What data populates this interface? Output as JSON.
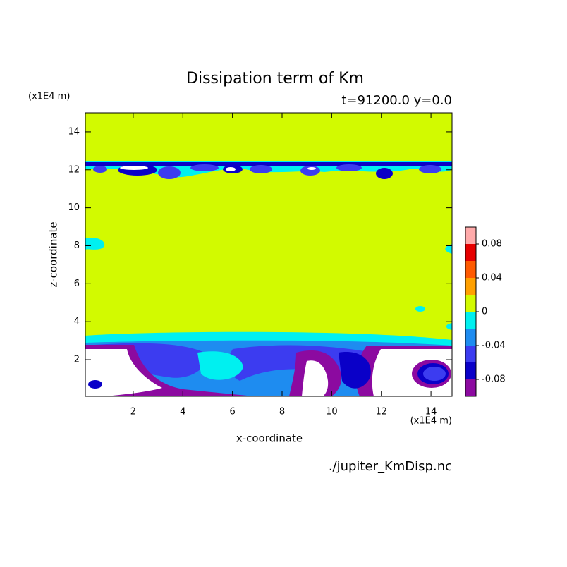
{
  "chart_data": {
    "type": "contour",
    "title": "Dissipation term of Km",
    "subtitle": "t=91200.0 y=0.0",
    "x_label": "x-coordinate",
    "y_label": "z-coordinate",
    "x_unit": "(x1E4 m)",
    "y_unit": "(x1E4 m)",
    "source": "./jupiter_KmDisp.nc",
    "xlim": [
      0.07,
      14.85
    ],
    "ylim": [
      0.07,
      15
    ],
    "xticks": [
      2,
      4,
      6,
      8,
      10,
      12,
      14
    ],
    "yticks": [
      2,
      4,
      6,
      8,
      10,
      12,
      14
    ],
    "colorbar": {
      "levels": [
        -0.1,
        -0.08,
        -0.06,
        -0.04,
        -0.02,
        0,
        0.02,
        0.04,
        0.06,
        0.08,
        0.1
      ],
      "colors": [
        "#8c0aa0",
        "#0a00c8",
        "#3c3cf0",
        "#1e8cf0",
        "#00f0f0",
        "#d2fa00",
        "#ffa000",
        "#ff5a00",
        "#e60000",
        "#ffaaaa"
      ],
      "ticks": [
        0.08,
        0.04,
        0,
        -0.04,
        -0.08
      ]
    }
  }
}
